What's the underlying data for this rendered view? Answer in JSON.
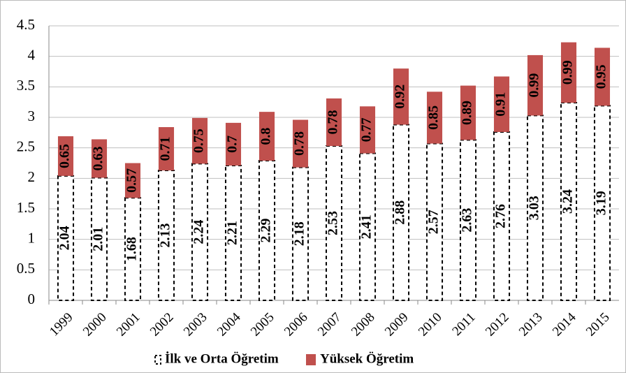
{
  "chart_data": {
    "type": "stacked_bar",
    "categories": [
      "1999",
      "2000",
      "2001",
      "2002",
      "2003",
      "2004",
      "2005",
      "2006",
      "2007",
      "2008",
      "2009",
      "2010",
      "2011",
      "2012",
      "2013",
      "2014",
      "2015"
    ],
    "series": [
      {
        "name": "İlk ve Orta Öğretim",
        "color": "#ffffff",
        "values": [
          2.04,
          2.01,
          1.68,
          2.13,
          2.24,
          2.21,
          2.29,
          2.18,
          2.53,
          2.41,
          2.88,
          2.57,
          2.63,
          2.76,
          3.03,
          3.24,
          3.19
        ]
      },
      {
        "name": "Yüksek Öğretim",
        "color": "#c0504d",
        "values": [
          0.65,
          0.63,
          0.57,
          0.71,
          0.75,
          0.7,
          0.8,
          0.78,
          0.78,
          0.77,
          0.92,
          0.85,
          0.89,
          0.91,
          0.99,
          0.99,
          0.95
        ]
      }
    ],
    "ylim": [
      0,
      4.5
    ],
    "yticks": [
      0,
      0.5,
      1,
      1.5,
      2,
      2.5,
      3,
      3.5,
      4,
      4.5
    ],
    "grid": true,
    "legend": "bottom"
  }
}
